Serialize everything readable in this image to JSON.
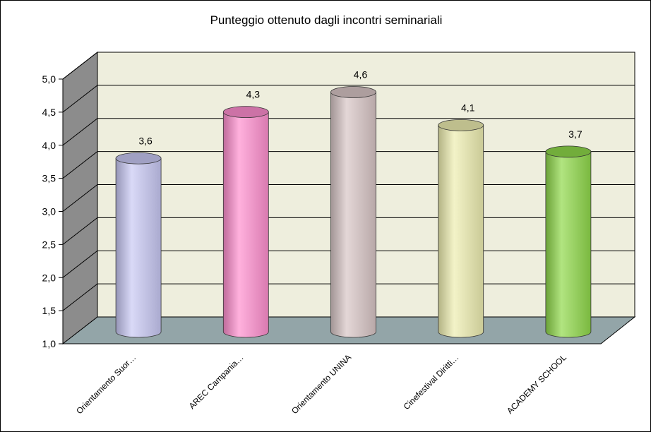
{
  "chart_data": {
    "type": "bar",
    "style": "3d-cylinder",
    "title": "Punteggio ottenuto dagli incontri seminariali",
    "categories": [
      "Orientamento Suor…",
      "AREC Campania…",
      "Orientamento UNINA",
      "Cinefestival Diritti…",
      "ACADEMY SCHOOL"
    ],
    "values": [
      3.6,
      4.3,
      4.6,
      4.1,
      3.7
    ],
    "value_labels": [
      "3,6",
      "4,3",
      "4,6",
      "4,1",
      "3,7"
    ],
    "y_ticks": [
      "1,0",
      "1,5",
      "2,0",
      "2,5",
      "3,0",
      "3,5",
      "4,0",
      "4,5",
      "5,0"
    ],
    "ylim": [
      1.0,
      5.0
    ],
    "grid": true,
    "legend": "none",
    "colors": {
      "bars": [
        "#c8c8f4",
        "#ff8fcf",
        "#d8c6c6",
        "#eeeeb0",
        "#8fd84a"
      ],
      "back_wall": "#eeeedd",
      "side_wall": "#8c8c8c",
      "floor": "#93a5a8",
      "grid_line": "#000000"
    }
  }
}
